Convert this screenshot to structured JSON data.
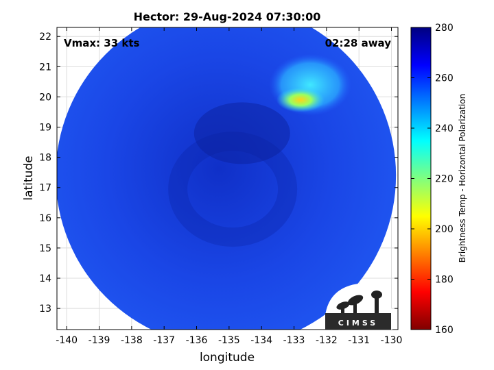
{
  "chart_data": {
    "type": "heatmap",
    "title": "Hector: 29-Aug-2024 07:30:00",
    "xlabel": "longitude",
    "ylabel": "latitude",
    "xlim": [
      -140.3,
      -129.8
    ],
    "ylim": [
      12.3,
      22.3
    ],
    "x_ticks": [
      -140,
      -139,
      -138,
      -137,
      -136,
      -135,
      -134,
      -133,
      -132,
      -131,
      -130
    ],
    "y_ticks": [
      13,
      14,
      15,
      16,
      17,
      18,
      19,
      20,
      21,
      22
    ],
    "grid": true,
    "annotations": {
      "vmax": "Vmax: 33 kts",
      "time_away": "02:28 away"
    },
    "logo_text": "CIMSS",
    "colorbar": {
      "label": "Brightness Temp - Horizontal Polarization",
      "range": [
        160,
        280
      ],
      "ticks": [
        160,
        180,
        200,
        220,
        240,
        260,
        280
      ],
      "colormap": "jet"
    },
    "swath": {
      "center_lon": -135.1,
      "center_lat": 17.4,
      "background_value": 262
    },
    "features": [
      {
        "label": "warm-core region",
        "lon": -132.8,
        "lat": 19.9,
        "value": 210
      },
      {
        "label": "warm-core halo",
        "lon": -132.5,
        "lat": 20.4,
        "value": 242
      }
    ]
  }
}
